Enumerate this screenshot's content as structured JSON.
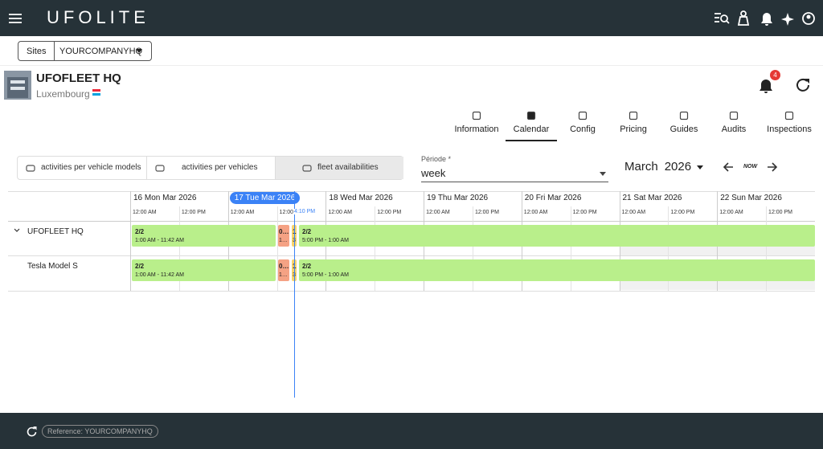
{
  "app_bar": {
    "logo": "UFOLITE"
  },
  "site_bar": {
    "label": "Sites",
    "value": "YOURCOMPANYHQ"
  },
  "site": {
    "name": "UFOFLEET HQ",
    "country": "Luxembourg",
    "notification_count": "4"
  },
  "tabs": {
    "items": [
      "Information",
      "Calendar",
      "Config",
      "Pricing",
      "Guides",
      "Audits",
      "Inspections"
    ],
    "active": 1
  },
  "view_toggle": {
    "options": [
      "activities per vehicle models",
      "activities per vehicles",
      "fleet availabilities"
    ],
    "selected": 2
  },
  "period": {
    "label": "Période *",
    "value": "week"
  },
  "month": "March",
  "year": "2026",
  "now": "NOW",
  "calendar": {
    "days": [
      "16 Mon Mar 2026",
      "17 Tue Mar 2026",
      "18 Wed Mar 2026",
      "19 Thu Mar 2026",
      "20 Fri Mar 2026",
      "21 Sat Mar 2026",
      "22 Sun Mar 2026"
    ],
    "today": 1,
    "times": [
      "12:00 AM",
      "12:00 PM"
    ],
    "current_time": "4:10 PM",
    "rows": [
      {
        "label": "UFOFLEET HQ",
        "events": [
          {
            "title": "2/2",
            "time": "1:00 AM - 11:42 AM",
            "color": "#b9ef8b"
          },
          {
            "title": "0…",
            "time": "1…",
            "color": "#f5a284"
          },
          {
            "title": "1",
            "time": "3",
            "color": "#f9d46a"
          },
          {
            "title": "2/2",
            "time": "5:00 PM - 1:00 AM",
            "color": "#b9ef8b"
          }
        ]
      },
      {
        "label": "Tesla Model S",
        "events": [
          {
            "title": "2/2",
            "time": "1:00 AM - 11:42 AM",
            "color": "#b9ef8b"
          },
          {
            "title": "0…",
            "time": "1…",
            "color": "#f5a284"
          },
          {
            "title": "1",
            "time": "3",
            "color": "#f9d46a"
          },
          {
            "title": "2/2",
            "time": "5:00 PM - 1:00 AM",
            "color": "#b9ef8b"
          }
        ]
      }
    ]
  },
  "footer": {
    "reference": "Reference: YOURCOMPANYHQ"
  }
}
